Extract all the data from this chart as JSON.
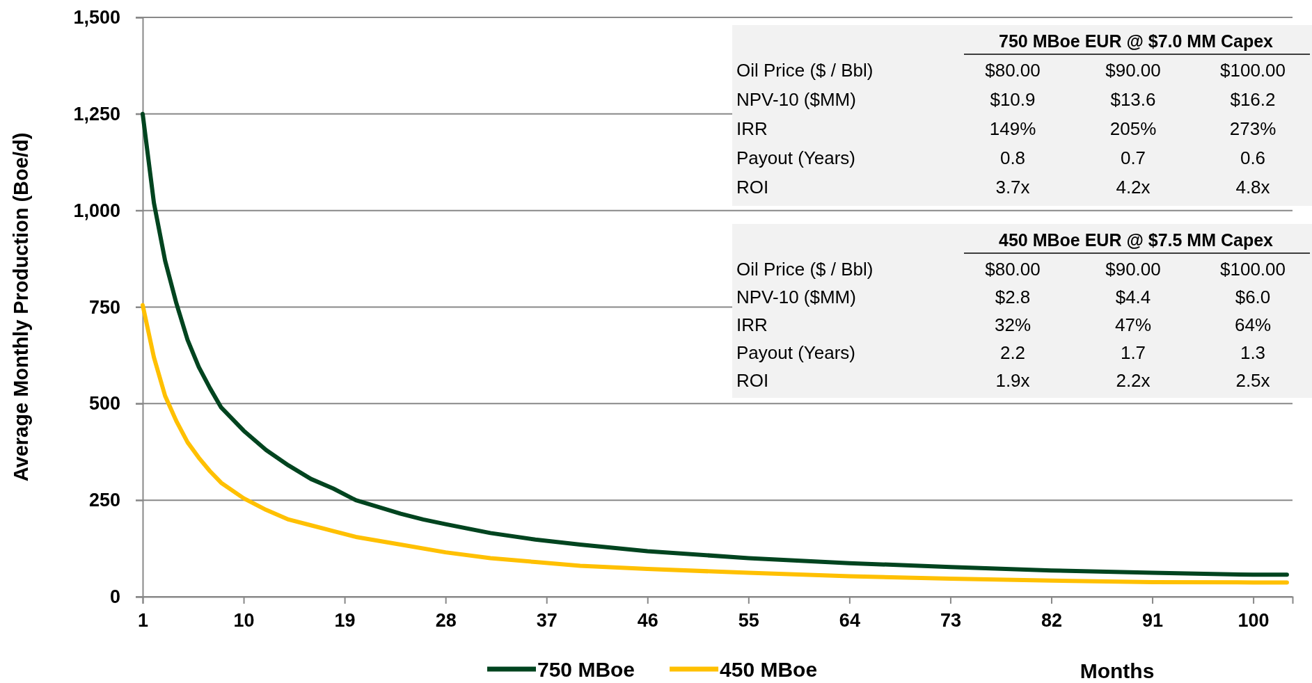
{
  "chart_data": {
    "type": "line",
    "xlabel": "Months",
    "ylabel": "Average Monthly Production (Boe/d)",
    "xlim": [
      1,
      103.5
    ],
    "xticks": [
      1,
      10,
      19,
      28,
      37,
      46,
      55,
      64,
      73,
      82,
      91,
      100
    ],
    "ylim": [
      0,
      1500
    ],
    "yticks": [
      0,
      {
        "value": 250,
        "label": "250"
      },
      {
        "value": 500,
        "label": "500"
      },
      {
        "value": 750,
        "label": "750"
      },
      {
        "value": 1000,
        "label": "1,000"
      },
      {
        "value": 1250,
        "label": "1,250"
      },
      {
        "value": 1500,
        "label": "1,500"
      }
    ],
    "grid": "y",
    "legend": "bottom",
    "line_style": "solid",
    "marker": "none",
    "series": [
      {
        "name": "750 MBoe",
        "color": "#00441f",
        "x": [
          1,
          2,
          3,
          4,
          5,
          6,
          7,
          8,
          10,
          12,
          14,
          16,
          18,
          20,
          24,
          26,
          28,
          32,
          36,
          40,
          46,
          55,
          64,
          73,
          82,
          91,
          100,
          103
        ],
        "values": [
          1250,
          1020,
          870,
          760,
          665,
          595,
          540,
          490,
          430,
          380,
          340,
          305,
          280,
          250,
          215,
          200,
          188,
          165,
          148,
          135,
          118,
          100,
          87,
          77,
          68,
          62,
          57,
          57
        ]
      },
      {
        "name": "450 MBoe",
        "color": "#ffc000",
        "x": [
          1,
          2,
          3,
          4,
          5,
          6,
          7,
          8,
          10,
          12,
          14,
          16,
          18,
          20,
          24,
          28,
          32,
          36,
          40,
          46,
          55,
          64,
          73,
          82,
          91,
          100,
          103
        ],
        "values": [
          755,
          620,
          520,
          455,
          400,
          360,
          325,
          295,
          255,
          225,
          200,
          185,
          170,
          155,
          135,
          115,
          100,
          90,
          80,
          72,
          62,
          53,
          47,
          42,
          38,
          37,
          37
        ]
      }
    ],
    "annotations": [
      "750 MBoe EUR @ $7.0 MM Capex",
      "Oil Price ($ / Bbl)",
      "$80.00",
      "$90.00",
      "$100.00",
      "NPV-10 ($MM)",
      "$10.9",
      "$13.6",
      "$16.2",
      "IRR",
      "149%",
      "205%",
      "273%",
      "Payout (Years)",
      "0.8",
      "0.7",
      "0.6",
      "ROI",
      "3.7x",
      "4.2x",
      "4.8x",
      "450 MBoe EUR @ $7.5 MM Capex",
      "Oil Price ($ / Bbl)",
      "$80.00",
      "$90.00",
      "$100.00",
      "NPV-10 ($MM)",
      "$2.8",
      "$4.4",
      "$6.0",
      "IRR",
      "32%",
      "47%",
      "64%",
      "Payout (Years)",
      "2.2",
      "1.7",
      "1.3",
      "ROI",
      "1.9x",
      "2.2x",
      "2.5x"
    ]
  }
}
